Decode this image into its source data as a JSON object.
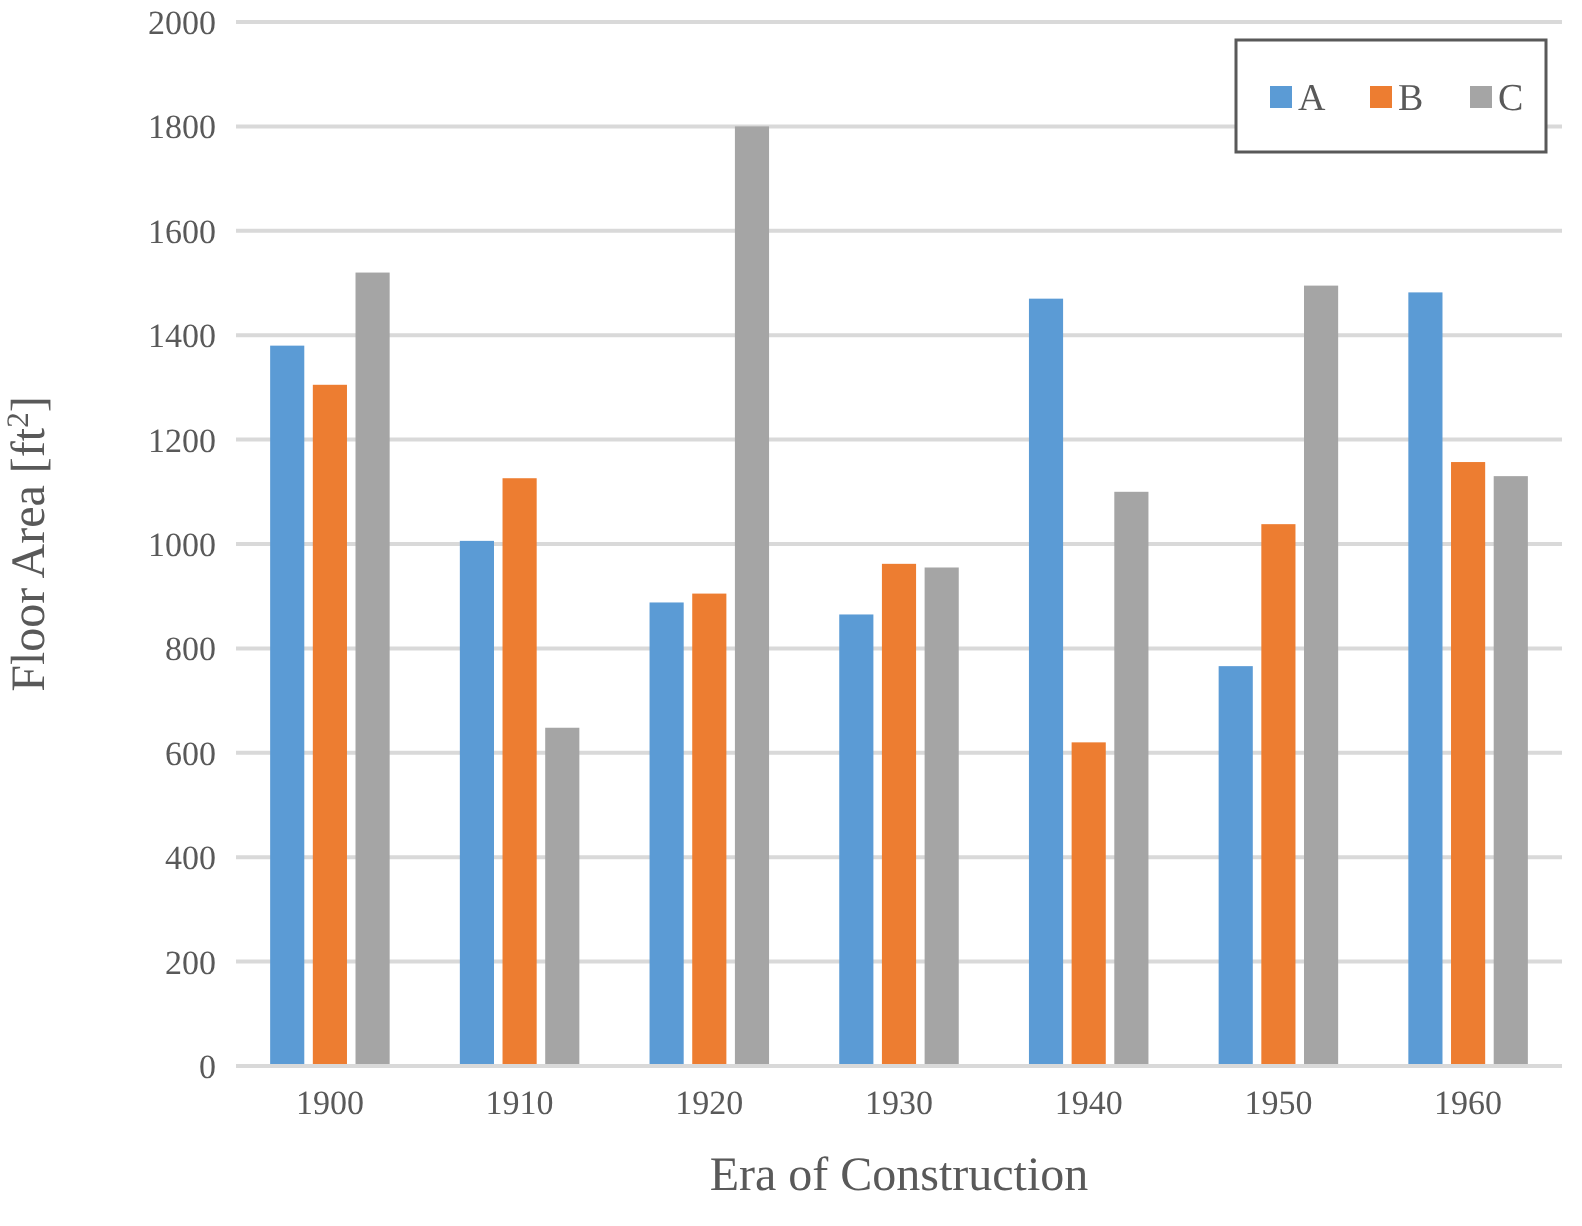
{
  "chart_data": {
    "type": "bar",
    "xlabel": "Era of Construction",
    "ylabel": "Floor Area [ft$^{2}$]",
    "categories": [
      "1900",
      "1910",
      "1920",
      "1930",
      "1940",
      "1950",
      "1960"
    ],
    "series": [
      {
        "name": "A",
        "color": "#5b9bd5",
        "values": [
          1380,
          1006,
          888,
          865,
          1470,
          766,
          1482
        ]
      },
      {
        "name": "B",
        "color": "#ed7d31",
        "values": [
          1305,
          1126,
          905,
          962,
          620,
          1038,
          1157
        ]
      },
      {
        "name": "C",
        "color": "#a5a5a5",
        "values": [
          1520,
          648,
          1800,
          955,
          1100,
          1495,
          1130
        ]
      }
    ],
    "ylim": [
      0,
      2000
    ],
    "yticks": [
      0,
      200,
      400,
      600,
      800,
      1000,
      1200,
      1400,
      1600,
      1800,
      2000
    ],
    "grid": "y",
    "legend": "top right"
  }
}
